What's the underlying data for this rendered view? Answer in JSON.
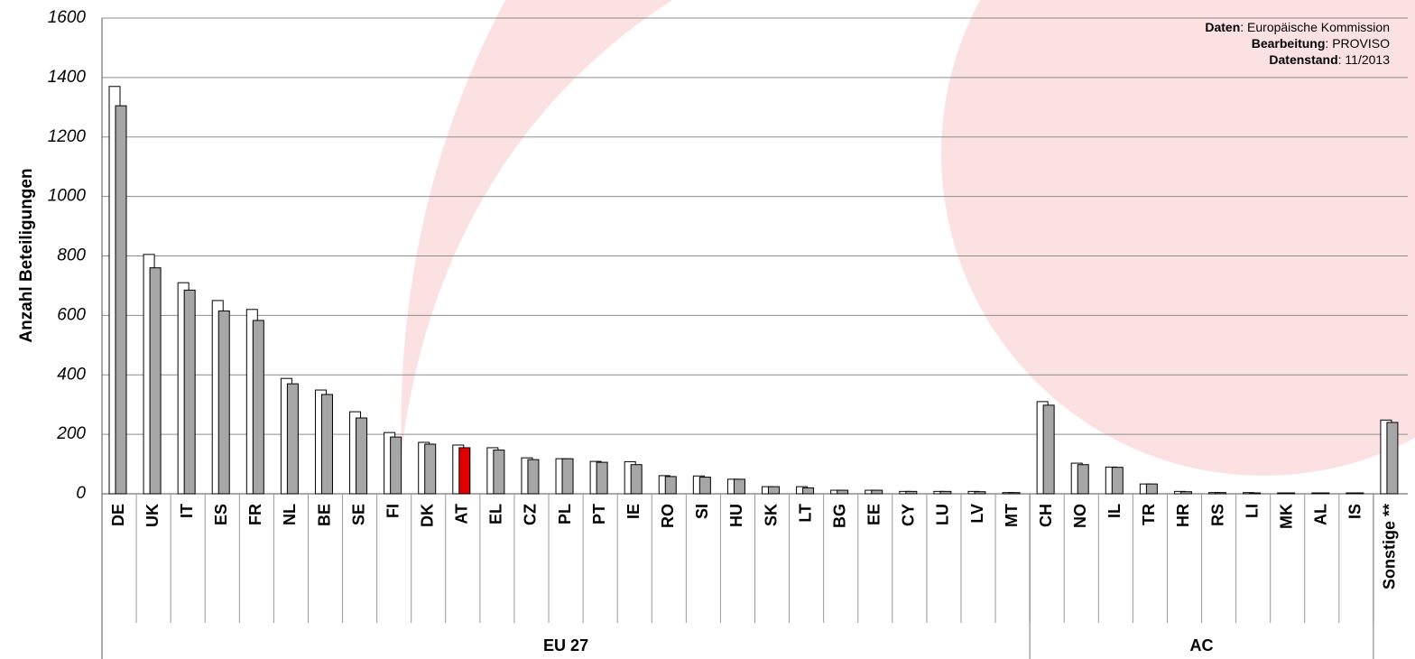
{
  "chart_data": {
    "type": "bar",
    "y_label": "Anzahl Beteiligungen",
    "categories": [
      "DE",
      "UK",
      "IT",
      "ES",
      "FR",
      "NL",
      "BE",
      "SE",
      "FI",
      "DK",
      "AT",
      "EL",
      "CZ",
      "PL",
      "PT",
      "IE",
      "RO",
      "SI",
      "HU",
      "SK",
      "LT",
      "BG",
      "EE",
      "CY",
      "LU",
      "LV",
      "MT",
      "CH",
      "NO",
      "IL",
      "TR",
      "HR",
      "RS",
      "LI",
      "MK",
      "AL",
      "IS",
      "Sonstige **"
    ],
    "series": [
      {
        "color": "#ffffff",
        "values": [
          1370,
          805,
          710,
          650,
          620,
          388,
          349,
          276,
          206,
          173,
          164,
          155,
          121,
          118,
          109,
          108,
          61,
          60,
          49,
          24,
          24,
          12,
          12,
          8,
          8,
          8,
          4,
          310,
          103,
          90,
          33,
          8,
          4,
          4,
          3,
          3,
          3,
          248
        ]
      },
      {
        "color": "#a6a6a6",
        "values": [
          1305,
          760,
          685,
          615,
          583,
          370,
          334,
          255,
          191,
          167,
          155,
          147,
          115,
          118,
          106,
          98,
          58,
          56,
          49,
          24,
          20,
          12,
          12,
          8,
          8,
          7,
          4,
          298,
          98,
          89,
          33,
          7,
          4,
          3,
          3,
          3,
          3,
          240
        ]
      }
    ],
    "highlight_index": 10,
    "highlight_color": "#e00000",
    "groups": [
      {
        "label": "EU 27",
        "count": 27
      },
      {
        "label": "AC",
        "count": 10
      }
    ],
    "ylim": [
      0,
      1600
    ],
    "yticks": [
      0,
      200,
      400,
      600,
      800,
      1000,
      1200,
      1400,
      1600
    ],
    "grid": true,
    "source": [
      {
        "label": "Daten",
        "text": ": Europäische Kommission"
      },
      {
        "label": "Bearbeitung",
        "text": ": PROVISO"
      },
      {
        "label": "Datenstand",
        "text": ": 11/2013"
      }
    ]
  }
}
